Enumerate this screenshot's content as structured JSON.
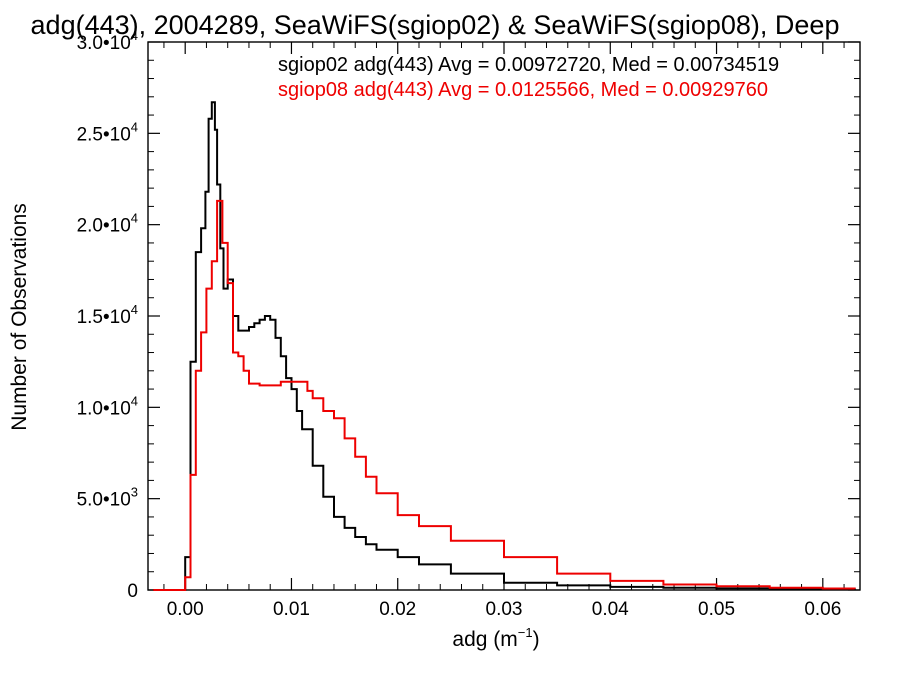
{
  "chart_data": {
    "type": "line",
    "title": "adg(443), 2004289, SeaWiFS(sgiop02) & SeaWiFS(sgiop08), Deep",
    "xlabel_base": "adg (m",
    "xlabel_exp": "−1",
    "xlabel_close": ")",
    "ylabel": "Number of Observations",
    "xlim": [
      -0.0035,
      0.0635
    ],
    "ylim": [
      0,
      30000
    ],
    "x_ticks": [
      {
        "v": 0.0,
        "label": "0.00"
      },
      {
        "v": 0.01,
        "label": "0.01"
      },
      {
        "v": 0.02,
        "label": "0.02"
      },
      {
        "v": 0.03,
        "label": "0.03"
      },
      {
        "v": 0.04,
        "label": "0.04"
      },
      {
        "v": 0.05,
        "label": "0.05"
      },
      {
        "v": 0.06,
        "label": "0.06"
      }
    ],
    "y_ticks": [
      {
        "v": 0,
        "mant": "0",
        "exp": ""
      },
      {
        "v": 5000,
        "mant": "5.0•10",
        "exp": "3"
      },
      {
        "v": 10000,
        "mant": "1.0•10",
        "exp": "4"
      },
      {
        "v": 15000,
        "mant": "1.5•10",
        "exp": "4"
      },
      {
        "v": 20000,
        "mant": "2.0•10",
        "exp": "4"
      },
      {
        "v": 25000,
        "mant": "2.5•10",
        "exp": "4"
      },
      {
        "v": 30000,
        "mant": "3.0•10",
        "exp": "4"
      }
    ],
    "grid": false,
    "legend_position": "top-right",
    "series": [
      {
        "name": "sgiop02 adg(443) Avg = 0.00972720, Med = 0.00734519",
        "color": "#000000",
        "x": [
          -0.003,
          -0.0005,
          0.0,
          0.0005,
          0.001,
          0.0015,
          0.0019,
          0.0022,
          0.0025,
          0.0028,
          0.003,
          0.0033,
          0.0036,
          0.004,
          0.0045,
          0.005,
          0.0055,
          0.006,
          0.0065,
          0.007,
          0.0075,
          0.008,
          0.0085,
          0.009,
          0.0095,
          0.01,
          0.0105,
          0.011,
          0.012,
          0.013,
          0.014,
          0.015,
          0.016,
          0.017,
          0.018,
          0.02,
          0.022,
          0.025,
          0.03,
          0.035,
          0.04,
          0.045,
          0.05,
          0.055,
          0.06,
          0.063
        ],
        "y": [
          0,
          0,
          1800,
          12500,
          18500,
          19800,
          21800,
          25800,
          26700,
          25200,
          22200,
          18700,
          16500,
          17000,
          15000,
          14200,
          14200,
          14400,
          14600,
          14800,
          15000,
          14800,
          13800,
          12800,
          11600,
          11000,
          9800,
          8800,
          6800,
          5100,
          4000,
          3400,
          2900,
          2500,
          2200,
          1800,
          1400,
          900,
          400,
          250,
          170,
          120,
          90,
          60,
          40,
          30
        ]
      },
      {
        "name": "sgiop08 adg(443) Avg = 0.0125566, Med = 0.00929760",
        "color": "#ee0000",
        "x": [
          -0.003,
          -0.0005,
          0.0,
          0.0005,
          0.001,
          0.0015,
          0.002,
          0.0025,
          0.003,
          0.0035,
          0.004,
          0.0045,
          0.005,
          0.0055,
          0.006,
          0.007,
          0.008,
          0.009,
          0.01,
          0.011,
          0.0115,
          0.012,
          0.013,
          0.014,
          0.015,
          0.016,
          0.017,
          0.018,
          0.02,
          0.022,
          0.025,
          0.03,
          0.035,
          0.04,
          0.045,
          0.05,
          0.055,
          0.06,
          0.063
        ],
        "y": [
          0,
          0,
          700,
          6300,
          12000,
          14100,
          16500,
          18000,
          21300,
          19000,
          16800,
          13000,
          12800,
          12000,
          11300,
          11200,
          11200,
          11400,
          11400,
          11400,
          10900,
          10500,
          9800,
          9400,
          8300,
          7300,
          6200,
          5300,
          4100,
          3500,
          2700,
          1800,
          900,
          500,
          300,
          200,
          120,
          80,
          60
        ]
      }
    ]
  }
}
